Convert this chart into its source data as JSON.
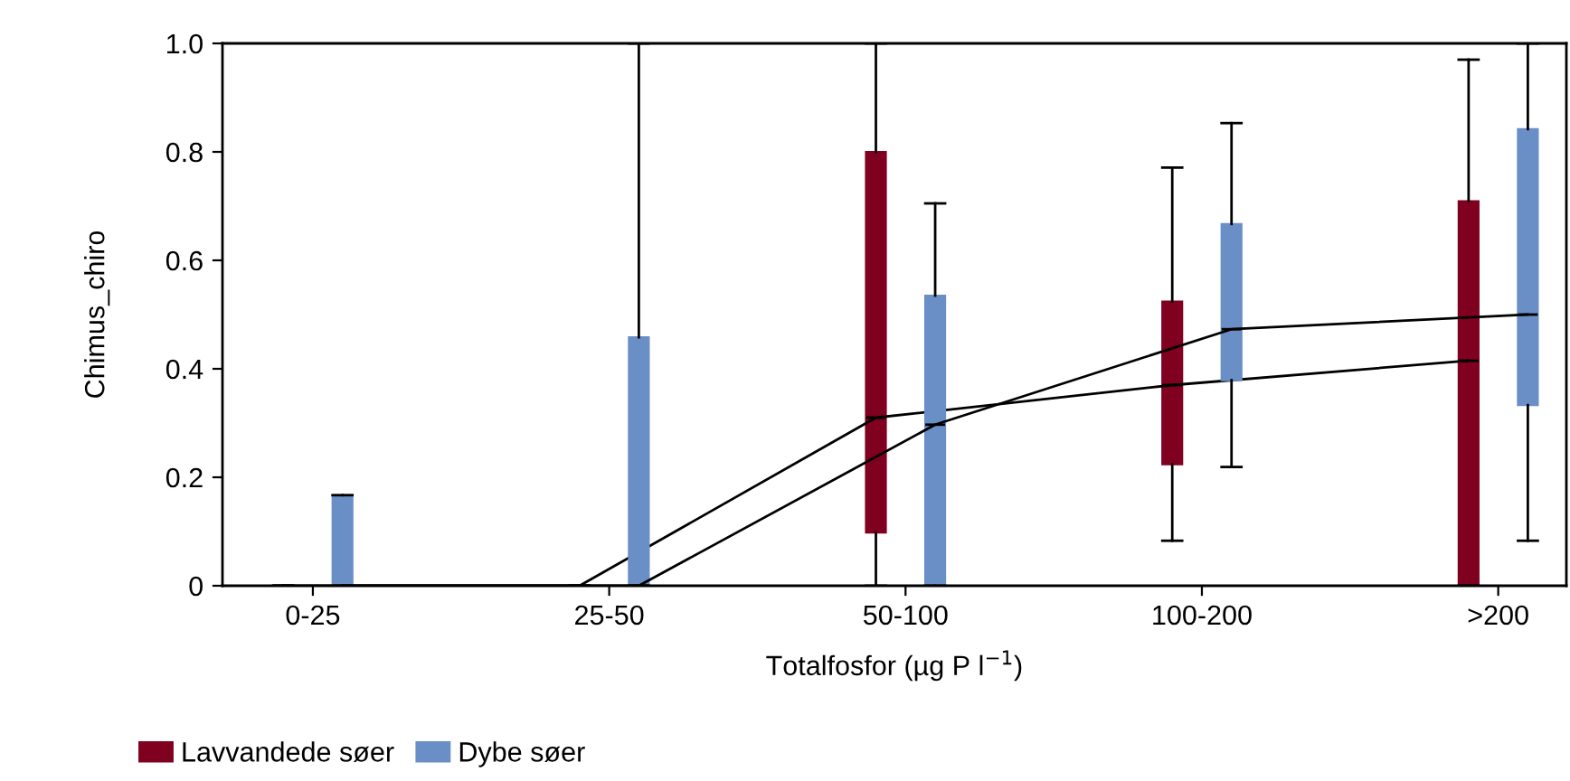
{
  "chart_data": {
    "type": "box",
    "xlabel": "Totalfosfor (µg P l$^{−1}$)",
    "ylabel": "Chimus_chiro",
    "categories": [
      "0-25",
      "25-50",
      "50-100",
      "100-200",
      ">200"
    ],
    "ylim": [
      0,
      1
    ],
    "yticks": [
      0,
      0.2,
      0.4,
      0.6,
      0.8,
      {
        "value": 1,
        "label": "1.0"
      }
    ],
    "grid": false,
    "legend": "bottom left",
    "series": [
      {
        "name": "Lavvandede søer",
        "color": "#800020",
        "boxes": [
          {
            "low": 0,
            "q1": 0,
            "median": 0,
            "q3": 0,
            "high": 0
          },
          {
            "low": 0,
            "q1": 0,
            "median": 0,
            "q3": 0,
            "high": 0
          },
          {
            "low": 0,
            "q1": 0.098,
            "median": 0.31,
            "q3": 0.8,
            "high": 1.0
          },
          {
            "low": 0.083,
            "q1": 0.224,
            "median": 0.37,
            "q3": 0.524,
            "high": 0.771
          },
          {
            "low": 0,
            "q1": 0,
            "median": 0.415,
            "q3": 0.709,
            "high": 0.97
          }
        ]
      },
      {
        "name": "Dybe søer",
        "color": "#6a8ec6",
        "boxes": [
          {
            "low": 0,
            "q1": 0,
            "median": 0,
            "q3": 0.167,
            "high": 0.167
          },
          {
            "low": 0,
            "q1": 0,
            "median": 0,
            "q3": 0.458,
            "high": 1.0
          },
          {
            "low": 0,
            "q1": 0,
            "median": 0.297,
            "q3": 0.535,
            "high": 0.705
          },
          {
            "low": 0.219,
            "q1": 0.379,
            "median": 0.473,
            "q3": 0.667,
            "high": 0.853
          },
          {
            "low": 0.083,
            "q1": 0.333,
            "median": 0.5,
            "q3": 0.842,
            "high": 1.0
          }
        ]
      }
    ]
  }
}
